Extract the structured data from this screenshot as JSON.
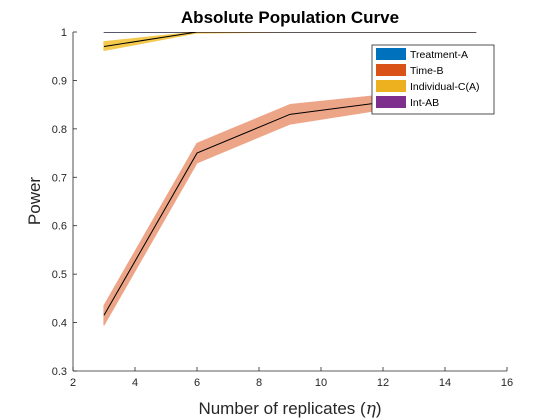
{
  "chart_data": {
    "type": "line",
    "title": "Absolute Population Curve",
    "xlabel_text": "Number of replicates (",
    "xlabel_symbol": "η",
    "xlabel_close": ")",
    "ylabel": "Power",
    "xlim": [
      2,
      16
    ],
    "ylim": [
      0.3,
      1
    ],
    "xticks": [
      "2",
      "4",
      "6",
      "8",
      "10",
      "12",
      "14",
      "16"
    ],
    "yticks": [
      "0.3",
      "0.4",
      "0.5",
      "0.6",
      "0.7",
      "0.8",
      "0.9",
      "1"
    ],
    "grid": false,
    "legend_position": "top-right",
    "series": [
      {
        "name": "Treatment-A",
        "color": "#0072BD",
        "band_color": "#0072BD",
        "x": [
          3,
          6,
          9,
          12,
          15
        ],
        "y": [
          1,
          1,
          1,
          1,
          1
        ],
        "lower": [
          1,
          1,
          1,
          1,
          1
        ],
        "upper": [
          1,
          1,
          1,
          1,
          1
        ]
      },
      {
        "name": "Time-B",
        "color": "#D95319",
        "band_color": "#EDA587",
        "x": [
          3,
          6,
          9,
          12,
          15
        ],
        "y": [
          0.415,
          0.75,
          0.83,
          0.855,
          0.87
        ],
        "lower": [
          0.395,
          0.73,
          0.81,
          0.84,
          0.855
        ],
        "upper": [
          0.435,
          0.77,
          0.85,
          0.87,
          0.885
        ]
      },
      {
        "name": "Individual-C(A)",
        "color": "#EDB120",
        "band_color": "#F3C94E",
        "x": [
          3,
          6,
          9,
          12,
          15
        ],
        "y": [
          0.97,
          1,
          1,
          1,
          1
        ],
        "lower": [
          0.962,
          0.998,
          1,
          1,
          1
        ],
        "upper": [
          0.98,
          1,
          1,
          1,
          1
        ]
      },
      {
        "name": "Int-AB",
        "color": "#7E2F8E",
        "band_color": "#7E2F8E",
        "x": [
          3,
          6,
          9,
          12,
          15
        ],
        "y": [
          1,
          1,
          1,
          1,
          1
        ],
        "lower": [
          1,
          1,
          1,
          1,
          1
        ],
        "upper": [
          1,
          1,
          1,
          1,
          1
        ]
      }
    ]
  }
}
